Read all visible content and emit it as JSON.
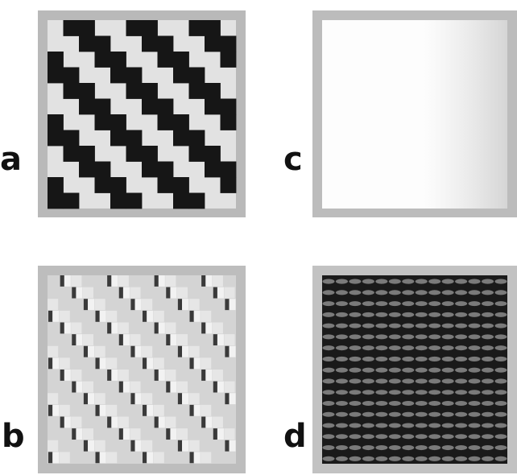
{
  "figure": {
    "panels": [
      {
        "id": "a",
        "label": "a",
        "content": "diagonal-staircase-pattern"
      },
      {
        "id": "b",
        "label": "b",
        "content": "relief-embossed-pattern"
      },
      {
        "id": "c",
        "label": "c",
        "content": "blank-bright-field"
      },
      {
        "id": "d",
        "label": "d",
        "content": "dark-horizontal-fringes"
      }
    ]
  }
}
